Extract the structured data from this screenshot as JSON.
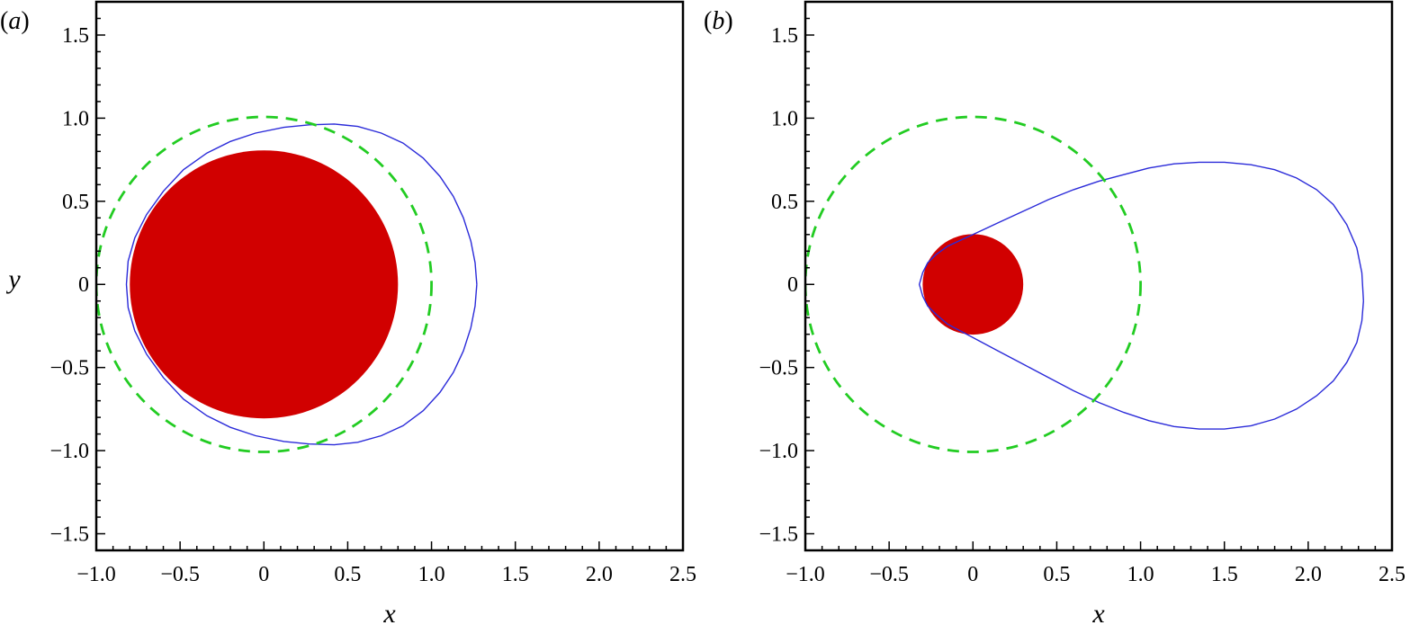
{
  "chart_data": [
    {
      "type": "line",
      "panel_label": "(a)",
      "panel_letter": "a",
      "xlabel": "x",
      "ylabel": "y",
      "xlim": [
        -1.0,
        2.5
      ],
      "ylim": [
        -1.6,
        1.7
      ],
      "xticks": [
        -1.0,
        -0.5,
        0,
        0.5,
        1.0,
        1.5,
        2.0,
        2.5
      ],
      "xtick_labels": [
        "−1.0",
        "−0.5",
        "0",
        "0.5",
        "1.0",
        "1.5",
        "2.0",
        "2.5"
      ],
      "yticks": [
        -1.5,
        -1.0,
        -0.5,
        0,
        0.5,
        1.0,
        1.5
      ],
      "ytick_labels": [
        "−1.5",
        "−1.0",
        "−0.5",
        "0",
        "0.5",
        "1.0",
        "1.5"
      ],
      "grid": false,
      "colors": {
        "disk": "#d10000",
        "contour": "#2b2bd9",
        "reference": "#22cc22"
      },
      "disk": {
        "cx": 0,
        "cy": 0,
        "r": 0.8
      },
      "reference_circle": {
        "cx": 0,
        "cy": 0,
        "r": 1.0,
        "style": "dashed"
      },
      "contour": {
        "x": [
          1.27,
          1.26,
          1.235,
          1.19,
          1.13,
          1.05,
          0.95,
          0.83,
          0.7,
          0.56,
          0.42,
          0.27,
          0.12,
          -0.05,
          -0.2,
          -0.34,
          -0.48,
          -0.6,
          -0.7,
          -0.77,
          -0.81,
          -0.82,
          -0.81,
          -0.77,
          -0.7,
          -0.6,
          -0.48,
          -0.34,
          -0.2,
          -0.05,
          0.12,
          0.27,
          0.42,
          0.56,
          0.7,
          0.83,
          0.95,
          1.05,
          1.13,
          1.19,
          1.235,
          1.26,
          1.27
        ],
        "y": [
          0.0,
          0.13,
          0.26,
          0.4,
          0.53,
          0.65,
          0.76,
          0.85,
          0.91,
          0.95,
          0.965,
          0.96,
          0.945,
          0.91,
          0.86,
          0.79,
          0.69,
          0.56,
          0.42,
          0.28,
          0.14,
          0.0,
          -0.14,
          -0.28,
          -0.42,
          -0.56,
          -0.69,
          -0.79,
          -0.86,
          -0.91,
          -0.945,
          -0.96,
          -0.965,
          -0.95,
          -0.91,
          -0.85,
          -0.76,
          -0.65,
          -0.53,
          -0.4,
          -0.26,
          -0.13,
          0.0
        ]
      }
    },
    {
      "type": "line",
      "panel_label": "(b)",
      "panel_letter": "b",
      "xlabel": "x",
      "ylabel": "",
      "xlim": [
        -1.0,
        2.5
      ],
      "ylim": [
        -1.6,
        1.7
      ],
      "xticks": [
        -1.0,
        -0.5,
        0,
        0.5,
        1.0,
        1.5,
        2.0,
        2.5
      ],
      "xtick_labels": [
        "−1.0",
        "−0.5",
        "0",
        "0.5",
        "1.0",
        "1.5",
        "2.0",
        "2.5"
      ],
      "yticks": [
        -1.5,
        -1.0,
        -0.5,
        0,
        0.5,
        1.0,
        1.5
      ],
      "ytick_labels": [
        "−1.5",
        "−1.0",
        "−0.5",
        "0",
        "0.5",
        "1.0",
        "1.5"
      ],
      "grid": false,
      "colors": {
        "disk": "#d10000",
        "contour": "#2b2bd9",
        "reference": "#22cc22"
      },
      "disk": {
        "cx": 0,
        "cy": 0,
        "r": 0.3
      },
      "reference_circle": {
        "cx": 0,
        "cy": 0,
        "r": 1.0,
        "style": "dashed"
      },
      "contour": {
        "x": [
          2.33,
          2.32,
          2.29,
          2.23,
          2.15,
          2.05,
          1.93,
          1.8,
          1.66,
          1.5,
          1.35,
          1.2,
          1.05,
          0.9,
          0.75,
          0.6,
          0.45,
          0.3,
          0.15,
          0.0,
          -0.15,
          -0.22,
          -0.27,
          -0.3,
          -0.32,
          -0.3,
          -0.27,
          -0.22,
          -0.15,
          0.0,
          0.15,
          0.3,
          0.45,
          0.6,
          0.75,
          0.9,
          1.05,
          1.2,
          1.35,
          1.5,
          1.66,
          1.8,
          1.93,
          2.05,
          2.15,
          2.23,
          2.29,
          2.32,
          2.33
        ],
        "y": [
          -0.1,
          0.07,
          0.22,
          0.36,
          0.48,
          0.57,
          0.64,
          0.69,
          0.72,
          0.735,
          0.735,
          0.725,
          0.7,
          0.66,
          0.62,
          0.57,
          0.51,
          0.44,
          0.37,
          0.3,
          0.23,
          0.18,
          0.13,
          0.07,
          0.0,
          -0.07,
          -0.13,
          -0.18,
          -0.24,
          -0.32,
          -0.4,
          -0.48,
          -0.56,
          -0.64,
          -0.71,
          -0.77,
          -0.82,
          -0.855,
          -0.87,
          -0.87,
          -0.85,
          -0.81,
          -0.75,
          -0.67,
          -0.58,
          -0.47,
          -0.35,
          -0.22,
          -0.1
        ]
      }
    }
  ]
}
